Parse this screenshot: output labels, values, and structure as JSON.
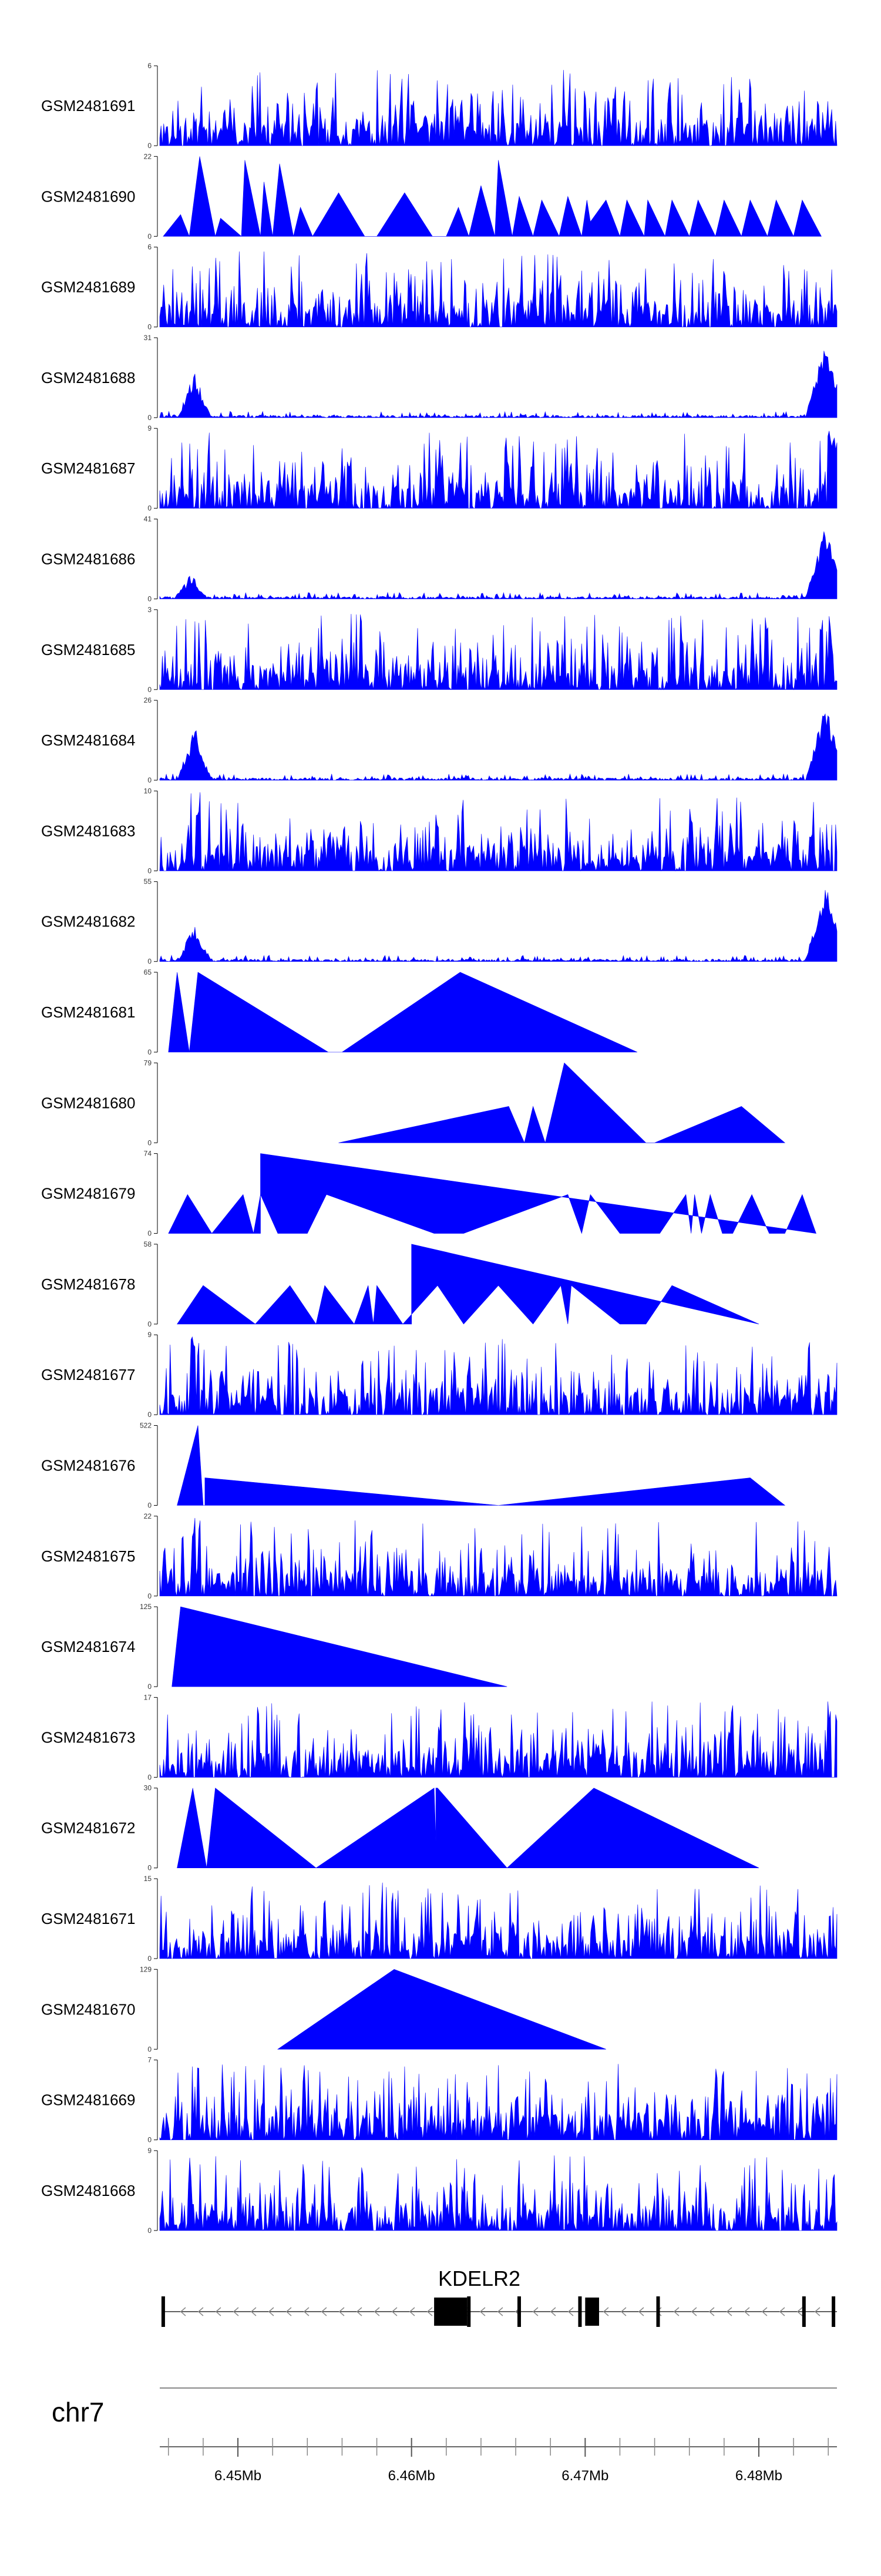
{
  "chart_data": {
    "type": "area",
    "title": "",
    "chromosome": "chr7",
    "region_mb": [
      6.4455,
      6.4845
    ],
    "axis_ticks_mb": [
      6.45,
      6.46,
      6.47,
      6.48
    ],
    "axis_tick_labels": [
      "6.45Mb",
      "6.46Mb",
      "6.47Mb",
      "6.48Mb"
    ],
    "color": "#0000ff",
    "gene": {
      "name": "KDELR2",
      "strand": "-",
      "span_mb": [
        6.4457,
        6.4845
      ],
      "thick_blocks_mb": [
        [
          6.4613,
          6.4632
        ],
        [
          6.47,
          6.4708
        ]
      ],
      "exons_mb": [
        6.4457,
        6.4633,
        6.4662,
        6.4697,
        6.4742,
        6.4826,
        6.4843
      ]
    },
    "tracks": [
      {
        "name": "GSM2481691",
        "ymax": 6,
        "style": "dense",
        "seed": 11,
        "edge": "peaks"
      },
      {
        "name": "GSM2481690",
        "ymax": 22,
        "style": "triangles",
        "points": [
          [
            6.4457,
            0
          ],
          [
            6.4467,
            6
          ],
          [
            6.4472,
            0
          ],
          [
            6.4478,
            22
          ],
          [
            6.4487,
            0
          ],
          [
            6.449,
            5
          ],
          [
            6.4502,
            0
          ],
          [
            6.4504,
            21
          ],
          [
            6.4513,
            0
          ],
          [
            6.4515,
            15
          ],
          [
            6.452,
            0
          ],
          [
            6.4524,
            20
          ],
          [
            6.4532,
            0
          ],
          [
            6.4536,
            8
          ],
          [
            6.4543,
            0
          ],
          [
            6.4558,
            12
          ],
          [
            6.4573,
            0
          ],
          [
            6.458,
            0
          ],
          [
            6.4596,
            12
          ],
          [
            6.4612,
            0
          ],
          [
            6.462,
            0
          ],
          [
            6.4627,
            8
          ],
          [
            6.4633,
            0
          ],
          [
            6.464,
            14
          ],
          [
            6.4648,
            0
          ],
          [
            6.465,
            21
          ],
          [
            6.4658,
            0
          ],
          [
            6.4662,
            11
          ],
          [
            6.467,
            0
          ],
          [
            6.4675,
            10
          ],
          [
            6.4685,
            0
          ],
          [
            6.469,
            11
          ],
          [
            6.4698,
            0
          ],
          [
            6.4701,
            10
          ],
          [
            6.4703,
            4
          ],
          [
            6.4712,
            10
          ],
          [
            6.472,
            0
          ],
          [
            6.4724,
            10
          ],
          [
            6.4734,
            0
          ],
          [
            6.4736,
            10
          ],
          [
            6.4746,
            0
          ],
          [
            6.475,
            10
          ],
          [
            6.476,
            0
          ],
          [
            6.4765,
            10
          ],
          [
            6.4775,
            0
          ],
          [
            6.478,
            10
          ],
          [
            6.479,
            0
          ],
          [
            6.4795,
            10
          ],
          [
            6.4805,
            0
          ],
          [
            6.481,
            10
          ],
          [
            6.482,
            0
          ],
          [
            6.4825,
            10
          ],
          [
            6.4836,
            0
          ]
        ]
      },
      {
        "name": "GSM2481689",
        "ymax": 6,
        "style": "dense",
        "seed": 23,
        "edge": "peaks"
      },
      {
        "name": "GSM2481688",
        "ymax": 31,
        "style": "enrich",
        "seed": 31,
        "left_mb": 6.4475,
        "left_h": 18,
        "right_h": 30
      },
      {
        "name": "GSM2481687",
        "ymax": 9,
        "style": "dense",
        "seed": 37,
        "edge": "rightpeak"
      },
      {
        "name": "GSM2481686",
        "ymax": 41,
        "style": "enrich",
        "seed": 41,
        "left_mb": 6.4473,
        "left_h": 13,
        "right_h": 38
      },
      {
        "name": "GSM2481685",
        "ymax": 3,
        "style": "dense",
        "seed": 43,
        "edge": "peaks"
      },
      {
        "name": "GSM2481684",
        "ymax": 26,
        "style": "enrich",
        "seed": 47,
        "left_mb": 6.4475,
        "left_h": 19,
        "right_h": 25
      },
      {
        "name": "GSM2481683",
        "ymax": 10,
        "style": "dense",
        "seed": 53,
        "edge": "leftspike"
      },
      {
        "name": "GSM2481682",
        "ymax": 55,
        "style": "enrich",
        "seed": 59,
        "left_mb": 6.4475,
        "left_h": 28,
        "right_h": 54
      },
      {
        "name": "GSM2481681",
        "ymax": 65,
        "style": "triangles",
        "points": [
          [
            6.446,
            0
          ],
          [
            6.4465,
            65
          ],
          [
            6.4472,
            0
          ],
          [
            6.4477,
            65
          ],
          [
            6.4552,
            0
          ],
          [
            6.456,
            0
          ],
          [
            6.4628,
            65
          ],
          [
            6.473,
            0
          ]
        ]
      },
      {
        "name": "GSM2481680",
        "ymax": 79,
        "style": "triangles",
        "points": [
          [
            6.4558,
            0
          ],
          [
            6.4656,
            36
          ],
          [
            6.4665,
            0
          ],
          [
            6.467,
            36
          ],
          [
            6.4677,
            0
          ],
          [
            6.4688,
            79
          ],
          [
            6.4735,
            0
          ],
          [
            6.474,
            0
          ],
          [
            6.479,
            36
          ],
          [
            6.4815,
            0
          ]
        ]
      },
      {
        "name": "GSM2481679",
        "ymax": 74,
        "style": "triangles",
        "points": [
          [
            6.446,
            0
          ],
          [
            6.4471,
            36
          ],
          [
            6.4485,
            0
          ],
          [
            6.4503,
            36
          ],
          [
            6.4509,
            0
          ],
          [
            6.4513,
            36
          ],
          [
            6.4523,
            0
          ],
          [
            6.454,
            0
          ],
          [
            6.4551,
            36
          ],
          [
            6.4613,
            0
          ],
          [
            6.463,
            0
          ],
          [
            6.469,
            36
          ],
          [
            6.4698,
            0
          ],
          [
            6.4703,
            36
          ],
          [
            6.472,
            0
          ],
          [
            6.4743,
            0
          ],
          [
            6.4758,
            36
          ],
          [
            6.4761,
            0
          ],
          [
            6.4763,
            36
          ],
          [
            6.4767,
            0
          ],
          [
            6.4772,
            36
          ],
          [
            6.4779,
            0
          ],
          [
            6.4785,
            0
          ],
          [
            6.4796,
            36
          ],
          [
            6.4806,
            0
          ],
          [
            6.4815,
            0
          ],
          [
            6.4825,
            36
          ],
          [
            6.4833,
            0
          ],
          [
            6.4513,
            74
          ],
          [
            6.4513,
            0
          ]
        ]
      },
      {
        "name": "GSM2481678",
        "ymax": 58,
        "style": "triangles",
        "points": [
          [
            6.4465,
            0
          ],
          [
            6.448,
            28
          ],
          [
            6.451,
            0
          ],
          [
            6.453,
            28
          ],
          [
            6.4545,
            0
          ],
          [
            6.455,
            28
          ],
          [
            6.4567,
            0
          ],
          [
            6.4575,
            28
          ],
          [
            6.4578,
            0
          ],
          [
            6.458,
            28
          ],
          [
            6.4595,
            0
          ],
          [
            6.4615,
            28
          ],
          [
            6.463,
            0
          ],
          [
            6.465,
            28
          ],
          [
            6.467,
            0
          ],
          [
            6.4686,
            28
          ],
          [
            6.469,
            0
          ],
          [
            6.4692,
            28
          ],
          [
            6.472,
            0
          ],
          [
            6.4735,
            0
          ],
          [
            6.475,
            28
          ],
          [
            6.48,
            0
          ],
          [
            6.46,
            58
          ],
          [
            6.46,
            0
          ]
        ]
      },
      {
        "name": "GSM2481677",
        "ymax": 9,
        "style": "dense",
        "seed": 67,
        "edge": "leftspike"
      },
      {
        "name": "GSM2481676",
        "ymax": 522,
        "style": "triangles",
        "points": [
          [
            6.4465,
            0
          ],
          [
            6.4477,
            522
          ],
          [
            6.448,
            0
          ],
          [
            6.4481,
            0
          ],
          [
            6.4481,
            180
          ],
          [
            6.465,
            0
          ],
          [
            6.4795,
            180
          ],
          [
            6.4815,
            0
          ]
        ]
      },
      {
        "name": "GSM2481675",
        "ymax": 22,
        "style": "dense",
        "seed": 73,
        "edge": "leftspike"
      },
      {
        "name": "GSM2481674",
        "ymax": 125,
        "style": "triangles",
        "points": [
          [
            6.4462,
            0
          ],
          [
            6.4467,
            125
          ],
          [
            6.4655,
            0
          ]
        ]
      },
      {
        "name": "GSM2481673",
        "ymax": 17,
        "style": "dense",
        "seed": 79,
        "edge": "rightpeak"
      },
      {
        "name": "GSM2481672",
        "ymax": 30,
        "style": "triangles",
        "points": [
          [
            6.4465,
            0
          ],
          [
            6.4474,
            30
          ],
          [
            6.4482,
            0
          ],
          [
            6.4487,
            30
          ],
          [
            6.4545,
            0
          ],
          [
            6.4613,
            30
          ],
          [
            6.4614,
            10
          ],
          [
            6.4614,
            30
          ],
          [
            6.4615,
            30
          ],
          [
            6.4655,
            0
          ],
          [
            6.4705,
            30
          ],
          [
            6.48,
            0
          ]
        ]
      },
      {
        "name": "GSM2481671",
        "ymax": 15,
        "style": "dense",
        "seed": 89,
        "edge": "peaks"
      },
      {
        "name": "GSM2481670",
        "ymax": 129,
        "style": "triangles",
        "points": [
          [
            6.4523,
            0
          ],
          [
            6.459,
            129
          ],
          [
            6.4712,
            0
          ]
        ]
      },
      {
        "name": "GSM2481669",
        "ymax": 7,
        "style": "dense",
        "seed": 97,
        "edge": "leftspike"
      },
      {
        "name": "GSM2481668",
        "ymax": 9,
        "style": "dense",
        "seed": 101,
        "edge": "peaks"
      }
    ]
  }
}
